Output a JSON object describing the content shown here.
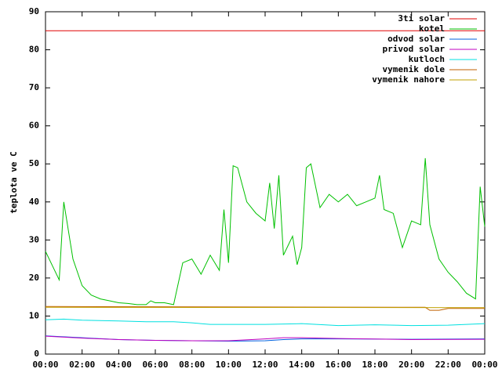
{
  "chart_data": {
    "type": "line",
    "y_label": "teplota ve C",
    "xlim": [
      0,
      24
    ],
    "xticks": [
      {
        "value": 0,
        "label": "00:00"
      },
      {
        "value": 2,
        "label": "02:00"
      },
      {
        "value": 4,
        "label": "04:00"
      },
      {
        "value": 6,
        "label": "06:00"
      },
      {
        "value": 8,
        "label": "08:00"
      },
      {
        "value": 10,
        "label": "10:00"
      },
      {
        "value": 12,
        "label": "12:00"
      },
      {
        "value": 14,
        "label": "14:00"
      },
      {
        "value": 16,
        "label": "16:00"
      },
      {
        "value": 18,
        "label": "18:00"
      },
      {
        "value": 20,
        "label": "20:00"
      },
      {
        "value": 22,
        "label": "22:00"
      },
      {
        "value": 24,
        "label": "00:00"
      }
    ],
    "ylim": [
      0,
      90
    ],
    "yticks": [
      0,
      10,
      20,
      30,
      40,
      50,
      60,
      70,
      80,
      90
    ],
    "legend": "top-right",
    "series": [
      {
        "name": "3ti solar",
        "color": "#e00000",
        "x": [
          0,
          24
        ],
        "values": [
          85,
          85
        ]
      },
      {
        "name": "kotel",
        "color": "#00c000",
        "x": [
          0,
          0.5,
          0.75,
          1,
          1.5,
          2,
          2.5,
          3,
          3.5,
          4,
          4.5,
          5,
          5.5,
          5.75,
          6,
          6.5,
          7,
          7.5,
          8,
          8.5,
          9,
          9.5,
          9.75,
          10,
          10.25,
          10.5,
          11,
          11.5,
          12,
          12.25,
          12.5,
          12.75,
          13,
          13.5,
          13.75,
          14,
          14.25,
          14.5,
          15,
          15.5,
          16,
          16.5,
          17,
          17.5,
          18,
          18.25,
          18.5,
          19,
          19.5,
          20,
          20.5,
          20.75,
          21,
          21.5,
          22,
          22.5,
          23,
          23.5,
          23.75,
          24
        ],
        "values": [
          27,
          22,
          19.5,
          40,
          25,
          18,
          15.5,
          14.5,
          14,
          13.5,
          13.3,
          13,
          13,
          14,
          13.5,
          13.5,
          13,
          24,
          25,
          21,
          26,
          22,
          38,
          24,
          49.5,
          49,
          40,
          37,
          35,
          45,
          33,
          47,
          26,
          31,
          23.5,
          28,
          49,
          50,
          38.5,
          42,
          40,
          42,
          39,
          40,
          41,
          47,
          38,
          37,
          28,
          35,
          34,
          51.5,
          34,
          25,
          21.5,
          19,
          16,
          14.5,
          44,
          33.5
        ]
      },
      {
        "name": "odvod solar",
        "color": "#0060e0",
        "x": [
          0,
          2,
          4,
          6,
          8,
          10,
          12,
          13,
          14,
          16,
          20,
          24
        ],
        "values": [
          4.8,
          4.3,
          3.8,
          3.6,
          3.5,
          3.4,
          3.5,
          3.8,
          4,
          4,
          3.9,
          4
        ]
      },
      {
        "name": "privod solar",
        "color": "#c000c0",
        "x": [
          0,
          2,
          4,
          6,
          8,
          10,
          12,
          13,
          14,
          16,
          20,
          24
        ],
        "values": [
          4.7,
          4.2,
          3.8,
          3.6,
          3.5,
          3.5,
          4,
          4.3,
          4.3,
          4.1,
          3.8,
          3.9
        ]
      },
      {
        "name": "kutloch",
        "color": "#00e0e0",
        "x": [
          0,
          1,
          2,
          4,
          5.5,
          7,
          8,
          9,
          12,
          14,
          16,
          18,
          20,
          22,
          24
        ],
        "values": [
          9,
          9.2,
          8.9,
          8.7,
          8.5,
          8.5,
          8.2,
          7.8,
          7.8,
          8,
          7.5,
          7.7,
          7.5,
          7.6,
          8
        ]
      },
      {
        "name": "vymenik dole",
        "color": "#c06000",
        "x": [
          0,
          20.75,
          21,
          21.5,
          22,
          24
        ],
        "values": [
          12.5,
          12.3,
          11.5,
          11.5,
          12,
          12
        ]
      },
      {
        "name": "vymenik nahore",
        "color": "#c0a000",
        "x": [
          0,
          24
        ],
        "values": [
          12.3,
          12.2
        ]
      }
    ]
  }
}
